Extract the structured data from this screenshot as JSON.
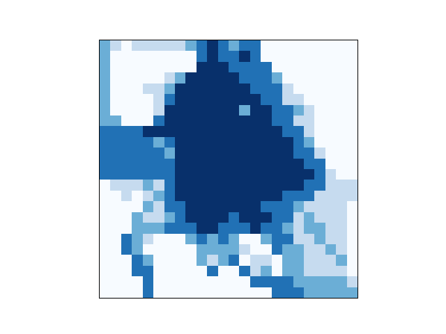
{
  "chart_data": {
    "type": "heatmap",
    "color": "Blues",
    "tick_labels": false,
    "xlim": [
      -0.5,
      23.5
    ],
    "ylim": [
      23.5,
      -0.5
    ],
    "zlim": [
      0,
      4
    ],
    "cells": [
      [
        2,
        1,
        0,
        1,
        1,
        1,
        1,
        1,
        2,
        3,
        4,
        3,
        2,
        3,
        3,
        0,
        0,
        0,
        0,
        0,
        0,
        0,
        0,
        0
      ],
      [
        2,
        0,
        0,
        0,
        0,
        0,
        0,
        0,
        0,
        3,
        4,
        3,
        3,
        4,
        3,
        0,
        0,
        0,
        0,
        0,
        0,
        0,
        0,
        0
      ],
      [
        2,
        0,
        0,
        0,
        0,
        0,
        0,
        0,
        0,
        4,
        4,
        4,
        3,
        3,
        3,
        3,
        0,
        0,
        0,
        0,
        0,
        0,
        0,
        0
      ],
      [
        2,
        0,
        0,
        0,
        0,
        0,
        1,
        2,
        4,
        4,
        4,
        4,
        4,
        3,
        3,
        3,
        2,
        0,
        0,
        0,
        0,
        0,
        0,
        0
      ],
      [
        2,
        0,
        0,
        0,
        1,
        1,
        2,
        4,
        4,
        4,
        4,
        4,
        4,
        4,
        3,
        3,
        3,
        1,
        0,
        0,
        0,
        0,
        0,
        0
      ],
      [
        2,
        0,
        0,
        0,
        0,
        1,
        3,
        4,
        4,
        4,
        4,
        4,
        4,
        4,
        4,
        3,
        3,
        1,
        1,
        0,
        0,
        0,
        0,
        0
      ],
      [
        2,
        0,
        0,
        0,
        0,
        1,
        4,
        4,
        4,
        4,
        4,
        4,
        4,
        2,
        4,
        4,
        3,
        3,
        2,
        1,
        0,
        0,
        0,
        0
      ],
      [
        2,
        2,
        0,
        0,
        0,
        3,
        4,
        4,
        4,
        4,
        4,
        4,
        4,
        4,
        4,
        4,
        3,
        3,
        1,
        1,
        0,
        0,
        0,
        0
      ],
      [
        3,
        3,
        3,
        3,
        4,
        4,
        4,
        4,
        4,
        4,
        4,
        4,
        4,
        4,
        4,
        4,
        4,
        3,
        3,
        1,
        0,
        0,
        0,
        0
      ],
      [
        3,
        3,
        3,
        3,
        3,
        2,
        3,
        4,
        4,
        4,
        4,
        4,
        4,
        4,
        4,
        4,
        4,
        4,
        3,
        2,
        0,
        0,
        0,
        0
      ],
      [
        3,
        3,
        3,
        3,
        3,
        3,
        2,
        4,
        4,
        4,
        4,
        4,
        4,
        4,
        4,
        4,
        4,
        4,
        3,
        3,
        1,
        0,
        0,
        0
      ],
      [
        3,
        3,
        3,
        3,
        3,
        3,
        3,
        4,
        4,
        4,
        4,
        4,
        4,
        4,
        4,
        4,
        4,
        4,
        4,
        3,
        3,
        0,
        0,
        0
      ],
      [
        3,
        3,
        3,
        3,
        3,
        3,
        3,
        4,
        4,
        4,
        4,
        4,
        4,
        4,
        4,
        4,
        4,
        4,
        4,
        4,
        3,
        1,
        0,
        0
      ],
      [
        0,
        1,
        1,
        1,
        2,
        1,
        3,
        4,
        4,
        4,
        4,
        4,
        4,
        4,
        4,
        4,
        4,
        4,
        4,
        3,
        3,
        1,
        1,
        1
      ],
      [
        0,
        0,
        1,
        0,
        1,
        2,
        3,
        4,
        4,
        4,
        4,
        4,
        4,
        4,
        4,
        4,
        4,
        3,
        3,
        3,
        1,
        1,
        1,
        1
      ],
      [
        0,
        0,
        0,
        0,
        2,
        1,
        3,
        3,
        4,
        4,
        4,
        4,
        4,
        4,
        4,
        3,
        3,
        3,
        2,
        1,
        1,
        1,
        1,
        0
      ],
      [
        0,
        0,
        0,
        2,
        1,
        1,
        2,
        3,
        4,
        4,
        4,
        4,
        3,
        4,
        4,
        4,
        3,
        3,
        1,
        2,
        1,
        1,
        1,
        0
      ],
      [
        0,
        0,
        0,
        2,
        2,
        2,
        3,
        3,
        3,
        4,
        4,
        3,
        3,
        3,
        4,
        3,
        3,
        2,
        1,
        2,
        2,
        1,
        1,
        0
      ],
      [
        0,
        0,
        3,
        2,
        1,
        0,
        0,
        0,
        2,
        3,
        2,
        3,
        2,
        0,
        0,
        2,
        3,
        3,
        1,
        1,
        2,
        1,
        1,
        0
      ],
      [
        0,
        0,
        3,
        2,
        0,
        0,
        0,
        0,
        0,
        2,
        2,
        2,
        2,
        1,
        0,
        0,
        3,
        2,
        2,
        1,
        1,
        2,
        1,
        0
      ],
      [
        0,
        0,
        0,
        3,
        2,
        0,
        0,
        0,
        0,
        2,
        1,
        2,
        3,
        0,
        1,
        1,
        0,
        2,
        2,
        1,
        1,
        1,
        2,
        0
      ],
      [
        0,
        0,
        0,
        3,
        3,
        0,
        0,
        0,
        0,
        0,
        3,
        0,
        0,
        3,
        1,
        2,
        0,
        2,
        2,
        1,
        1,
        1,
        1,
        0
      ],
      [
        0,
        0,
        0,
        0,
        3,
        0,
        0,
        0,
        0,
        0,
        0,
        0,
        0,
        0,
        3,
        3,
        3,
        3,
        2,
        2,
        2,
        2,
        2,
        1
      ],
      [
        0,
        0,
        0,
        0,
        3,
        0,
        0,
        0,
        0,
        0,
        0,
        0,
        0,
        0,
        0,
        0,
        3,
        3,
        3,
        2,
        2,
        2,
        2,
        2
      ]
    ]
  }
}
